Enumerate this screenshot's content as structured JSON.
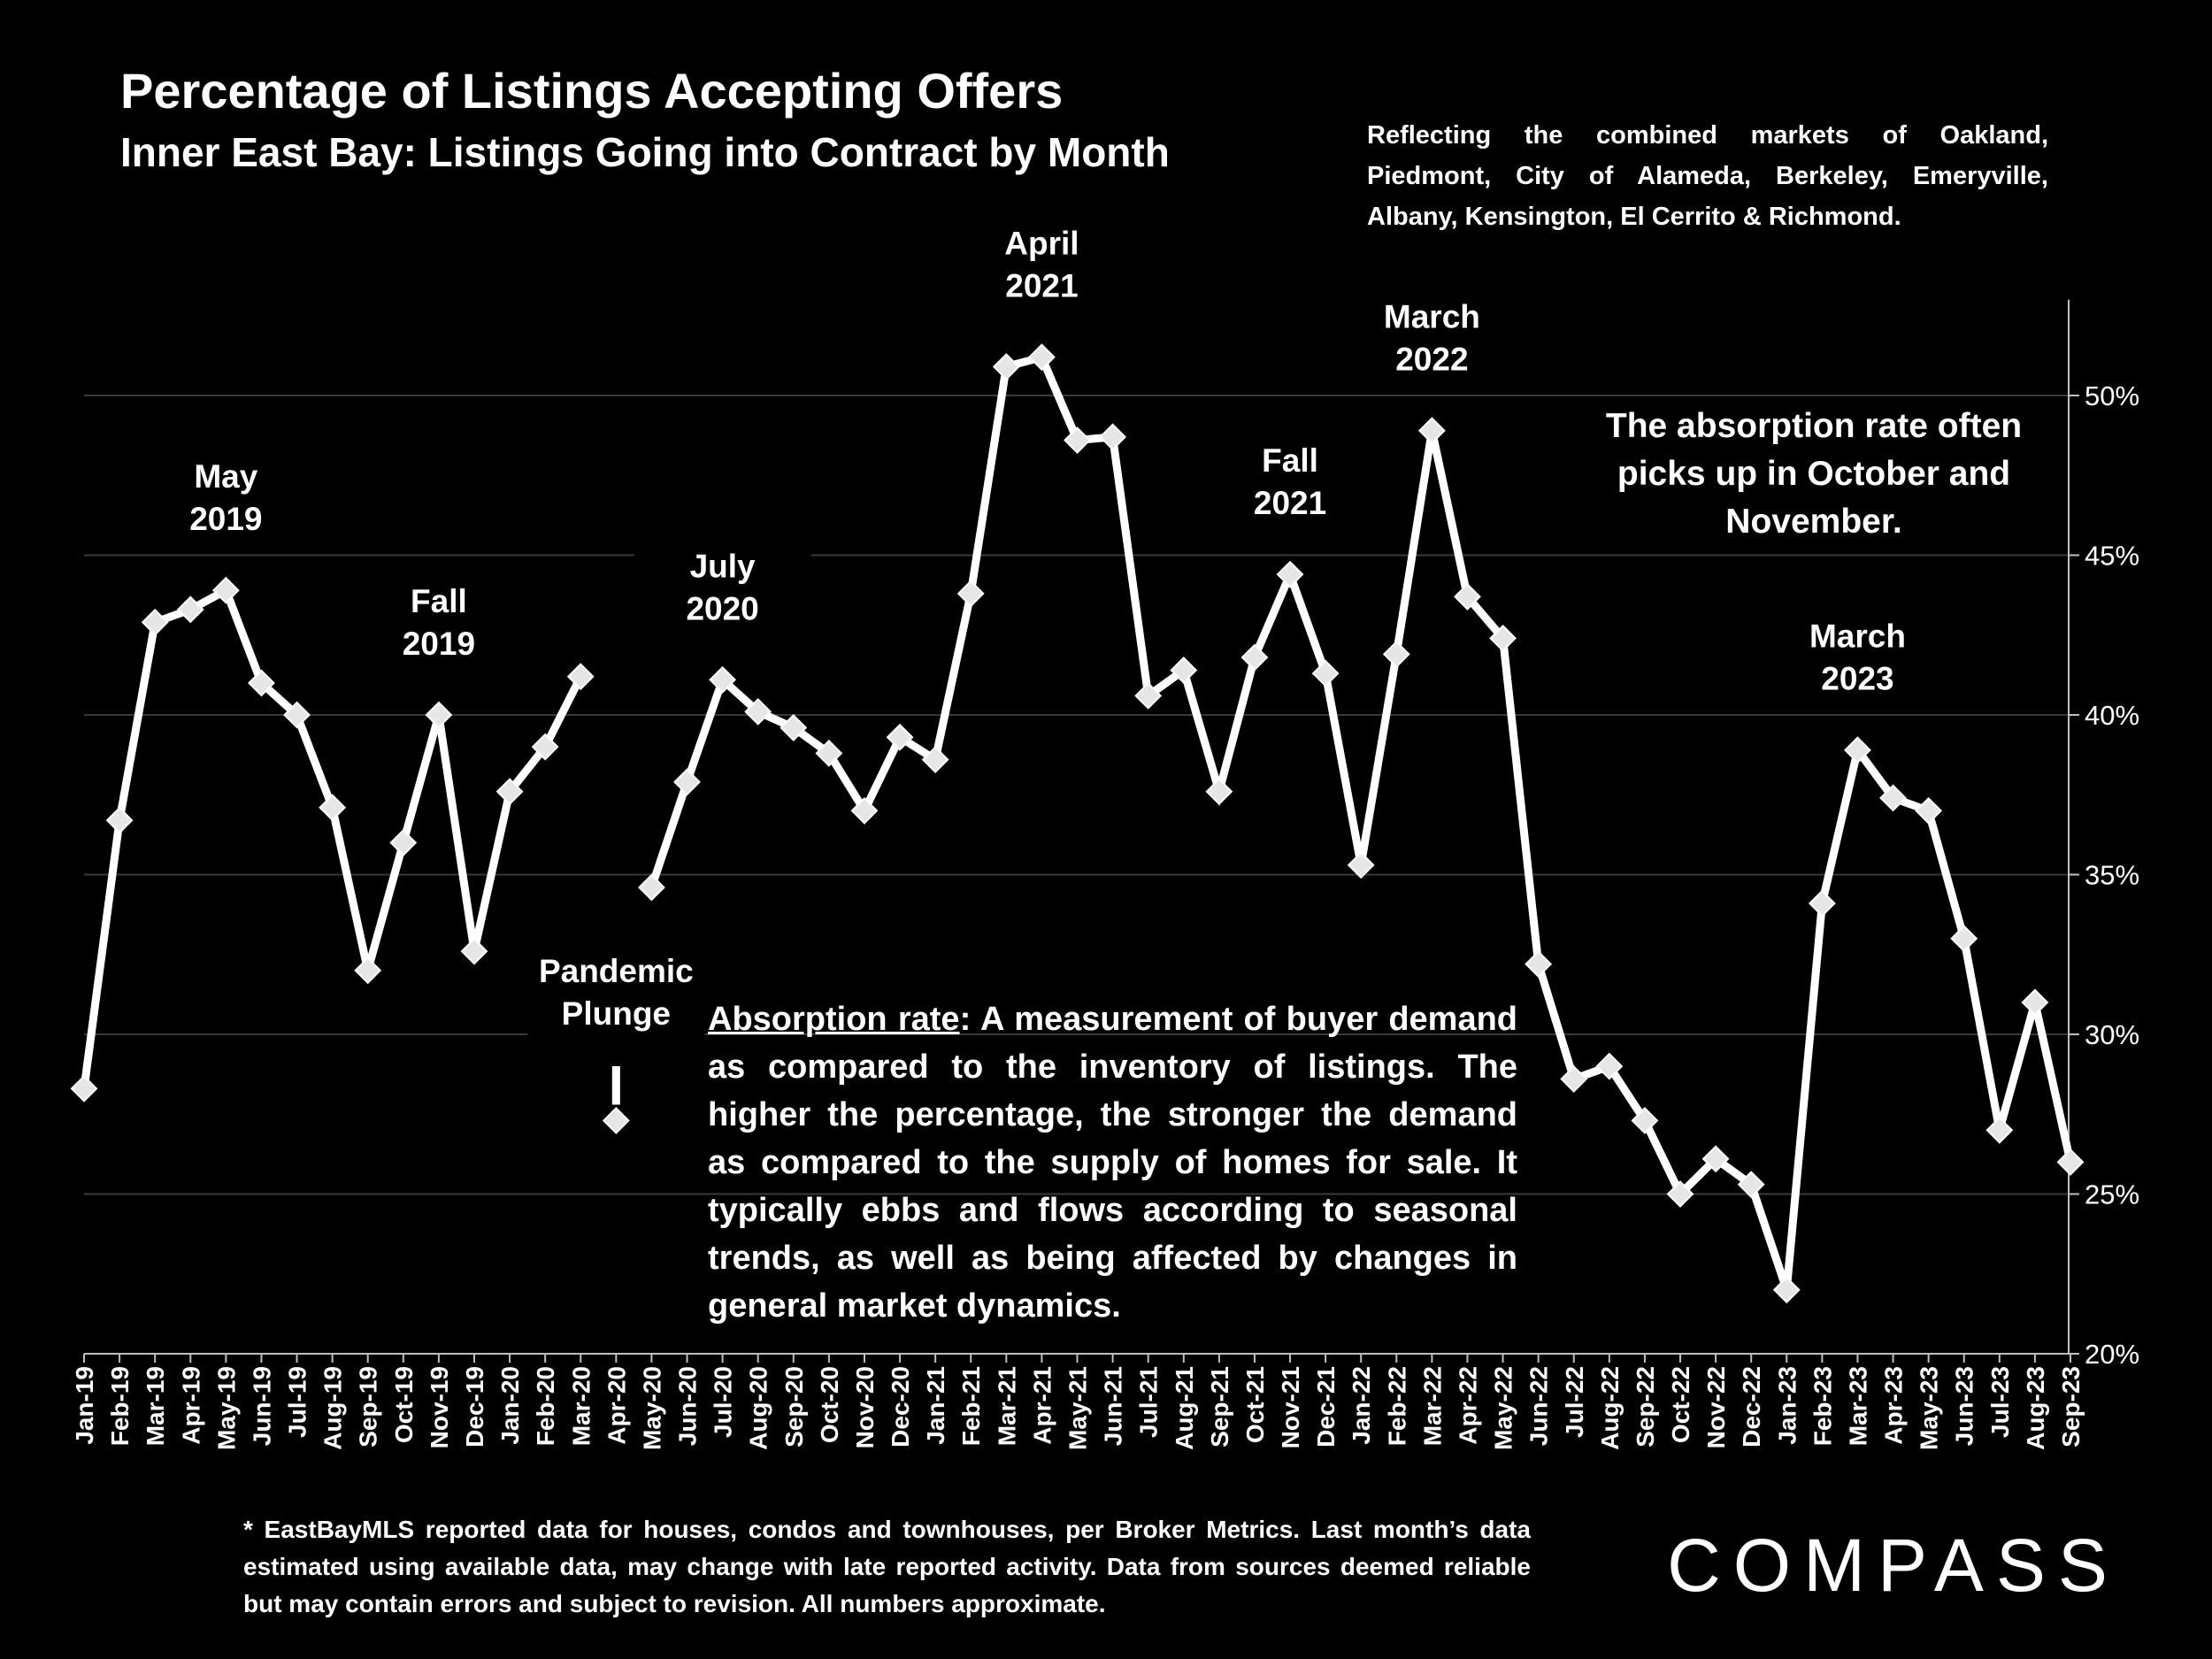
{
  "header": {
    "title": "Percentage of Listings Accepting Offers",
    "subtitle": "Inner East Bay: Listings Going into Contract by Month",
    "region_note": "Reflecting the combined markets of Oakland, Piedmont, City of Alameda, Berkeley, Emeryville, Albany, Kensington, El Cerrito & Richmond."
  },
  "notes": {
    "absorption_term": "Absorption rate",
    "absorption_text": ":  A measurement of buyer demand as compared to the inventory of listings. The higher the percentage, the stronger the demand as compared to the supply of homes for sale. It typically ebbs and flows according to seasonal trends, as well as being affected by changes in general market dynamics.",
    "seasonal": "The absorption rate often picks up in October and November.",
    "footnote": "* EastBayMLS reported data for houses, condos and townhouses, per Broker Metrics. Last month’s data estimated using available data, may change with late reported activity. Data from sources deemed reliable but may contain errors and subject to revision. All numbers approximate."
  },
  "brand": {
    "logo_text": "COMPASS"
  },
  "colors": {
    "background": "#000000",
    "line": "#ffffff",
    "gridline": "#3a3a3a",
    "axis": "#bfbfbf"
  },
  "chart_data": {
    "type": "line",
    "ylim": [
      20,
      53
    ],
    "yticks": [
      20,
      25,
      30,
      35,
      40,
      45,
      50
    ],
    "ytick_labels": [
      "20%",
      "25%",
      "30%",
      "35%",
      "40%",
      "45%",
      "50%"
    ],
    "y_axis_position": "right",
    "grid": true,
    "categories": [
      "Jan-19",
      "Feb-19",
      "Mar-19",
      "Apr-19",
      "May-19",
      "Jun-19",
      "Jul-19",
      "Aug-19",
      "Sep-19",
      "Oct-19",
      "Nov-19",
      "Dec-19",
      "Jan-20",
      "Feb-20",
      "Mar-20",
      "Apr-20",
      "May-20",
      "Jun-20",
      "Jul-20",
      "Aug-20",
      "Sep-20",
      "Oct-20",
      "Nov-20",
      "Dec-20",
      "Jan-21",
      "Feb-21",
      "Mar-21",
      "Apr-21",
      "May-21",
      "Jun-21",
      "Jul-21",
      "Aug-21",
      "Sep-21",
      "Oct-21",
      "Nov-21",
      "Dec-21",
      "Jan-22",
      "Feb-22",
      "Mar-22",
      "Apr-22",
      "May-22",
      "Jun-22",
      "Jul-22",
      "Aug-22",
      "Sep-22",
      "Oct-22",
      "Nov-22",
      "Dec-22",
      "Jan-23",
      "Feb-23",
      "Mar-23",
      "Apr-23",
      "May-23",
      "Jun-23",
      "Jul-23",
      "Aug-23",
      "Sep-23"
    ],
    "series": [
      {
        "values": [
          28.3,
          36.7,
          42.9,
          43.3,
          43.9,
          41.0,
          40.0,
          37.1,
          32.0,
          36.0,
          40.0,
          32.6,
          37.6,
          39.0,
          41.2,
          27.3,
          34.6,
          37.9,
          41.1,
          40.1,
          39.6,
          38.8,
          37.0,
          39.3,
          38.6,
          43.8,
          50.9,
          51.2,
          48.6,
          48.7,
          40.6,
          41.4,
          37.6,
          41.8,
          44.4,
          41.3,
          35.3,
          41.9,
          48.9,
          43.7,
          42.4,
          32.2,
          28.6,
          29.0,
          27.3,
          25.0,
          26.1,
          25.3,
          22.0,
          34.1,
          38.9,
          37.4,
          37.0,
          33.0,
          27.0,
          31.0,
          26.0
        ]
      }
    ],
    "annotations": [
      {
        "index": 4,
        "lines": [
          "May",
          "2019"
        ]
      },
      {
        "index": 10,
        "lines": [
          "Fall",
          "2019"
        ]
      },
      {
        "index": 15,
        "lines": [
          "Pandemic",
          "Plunge"
        ]
      },
      {
        "index": 18,
        "lines": [
          "July",
          "2020"
        ]
      },
      {
        "index": 27,
        "lines": [
          "April",
          "2021"
        ]
      },
      {
        "index": 34,
        "lines": [
          "Fall",
          "2021"
        ]
      },
      {
        "index": 38,
        "lines": [
          "March",
          "2022"
        ]
      },
      {
        "index": 50,
        "lines": [
          "March",
          "2023"
        ]
      }
    ]
  }
}
